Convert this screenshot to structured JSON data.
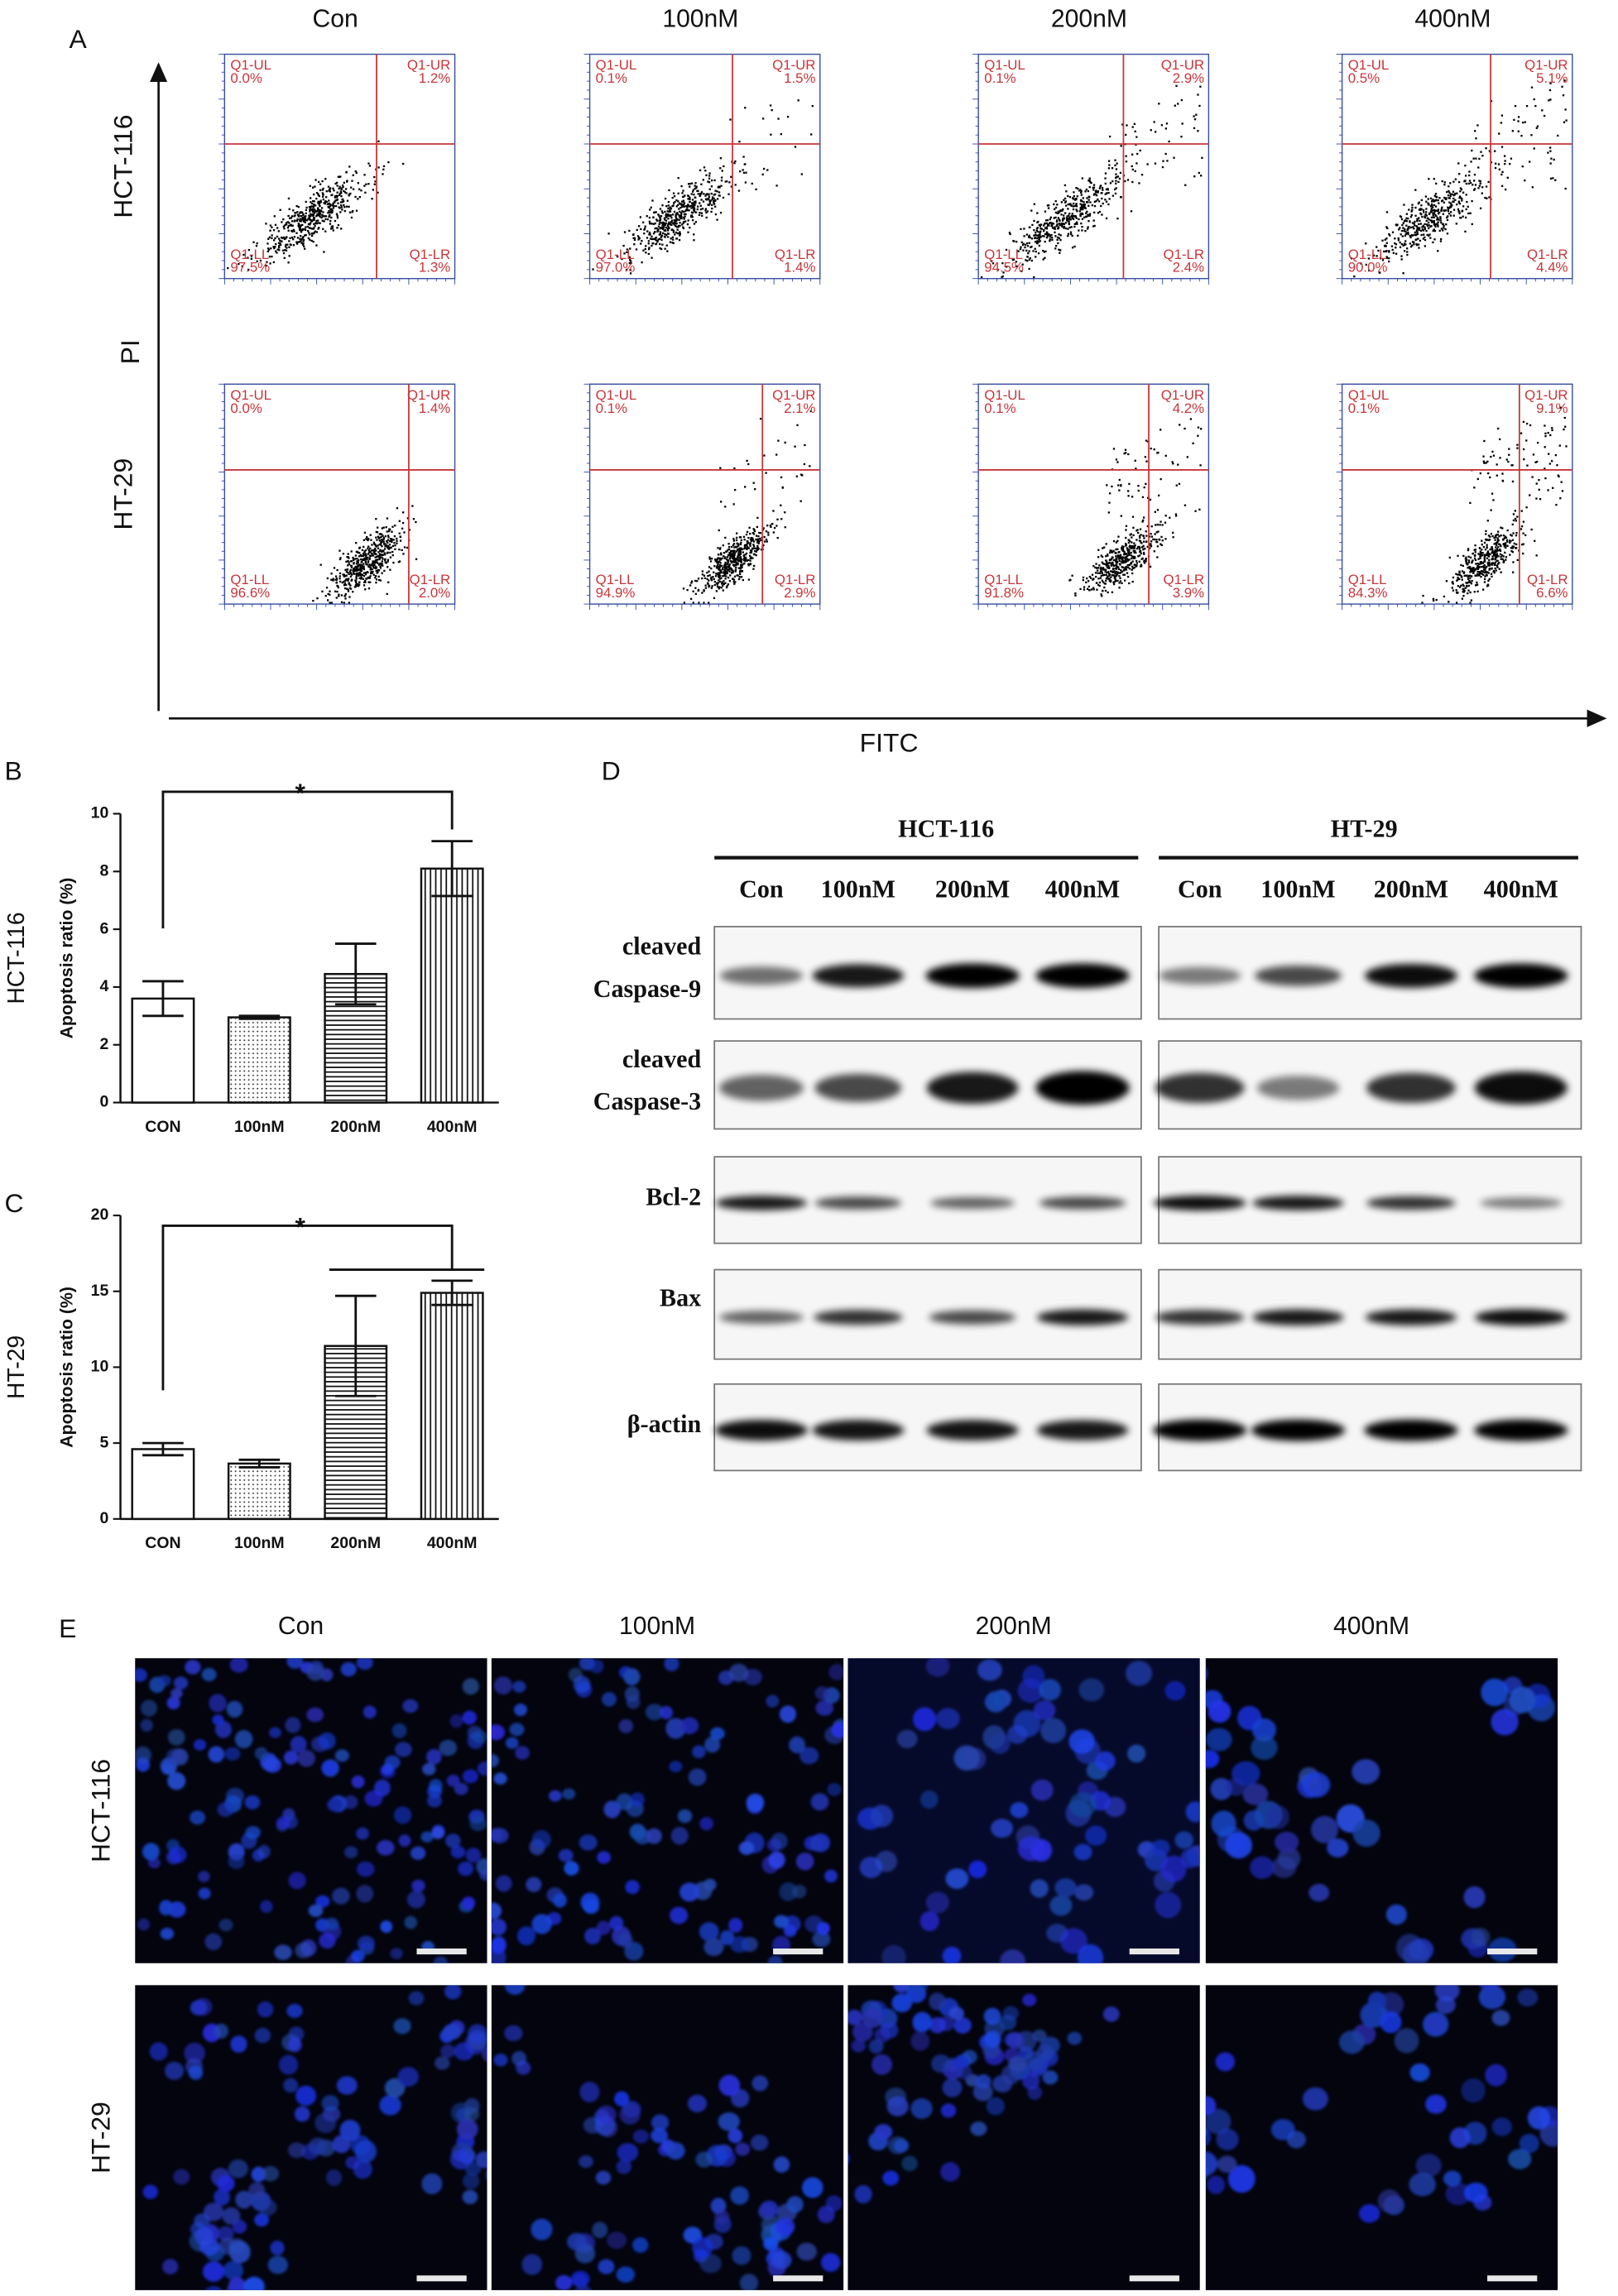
{
  "panel_a": {
    "label": "A",
    "columns": [
      "Con",
      "100nM",
      "200nM",
      "400nM"
    ],
    "rows": [
      "HCT-116",
      "HT-29"
    ],
    "y_label": "PI",
    "x_label": "FITC",
    "quadrant_names": [
      "Q1-UL",
      "Q1-UR",
      "Q1-LL",
      "Q1-LR"
    ],
    "plots": [
      [
        [
          "0.0%",
          "1.2%",
          "97.5%",
          "1.3%"
        ],
        [
          "0.1%",
          "1.5%",
          "97.0%",
          "1.4%"
        ],
        [
          "0.1%",
          "2.9%",
          "94.5%",
          "2.4%"
        ],
        [
          "0.5%",
          "5.1%",
          "90.0%",
          "4.4%"
        ]
      ],
      [
        [
          "0.0%",
          "1.4%",
          "96.6%",
          "2.0%"
        ],
        [
          "0.1%",
          "2.1%",
          "94.9%",
          "2.9%"
        ],
        [
          "0.1%",
          "4.2%",
          "91.8%",
          "3.9%"
        ],
        [
          "0.1%",
          "9.1%",
          "84.3%",
          "6.6%"
        ]
      ]
    ]
  },
  "chart_data": [
    {
      "type": "bar",
      "label": "B",
      "side_label": "HCT-116",
      "y_label": "Apoptosis ratio  (%)",
      "categories": [
        "CON",
        "100nM",
        "200nM",
        "400nM"
      ],
      "values": [
        3.6,
        2.95,
        4.45,
        8.1
      ],
      "errors": [
        0.6,
        0.05,
        1.05,
        0.95
      ],
      "ylim": [
        0,
        10
      ],
      "yticks": [
        0,
        2,
        4,
        6,
        8,
        10
      ],
      "annotation": "*",
      "patterns": [
        "none",
        "dots",
        "hlines",
        "vlines"
      ]
    },
    {
      "type": "bar",
      "label": "C",
      "side_label": "HT-29",
      "y_label": "Apoptosis ratio  (%)",
      "categories": [
        "CON",
        "100nM",
        "200nM",
        "400nM"
      ],
      "values": [
        4.6,
        3.65,
        11.4,
        14.9
      ],
      "errors": [
        0.4,
        0.25,
        3.3,
        0.8
      ],
      "ylim": [
        0,
        20
      ],
      "yticks": [
        0,
        5,
        10,
        15,
        20
      ],
      "annotation": "*",
      "patterns": [
        "none",
        "dots",
        "hlines",
        "vlines"
      ]
    }
  ],
  "panel_d": {
    "label": "D",
    "groups": [
      "HCT-116",
      "HT-29"
    ],
    "lanes": [
      "Con",
      "100nM",
      "200nM",
      "400nM"
    ],
    "proteins": [
      [
        "cleaved",
        "Caspase-9"
      ],
      [
        "cleaved",
        "Caspase-3"
      ],
      [
        "Bcl-2"
      ],
      [
        "Bax"
      ],
      [
        "β-actin"
      ]
    ]
  },
  "panel_e": {
    "label": "E",
    "columns": [
      "Con",
      "100nM",
      "200nM",
      "400nM"
    ],
    "rows": [
      "HCT-116",
      "HT-29"
    ]
  }
}
